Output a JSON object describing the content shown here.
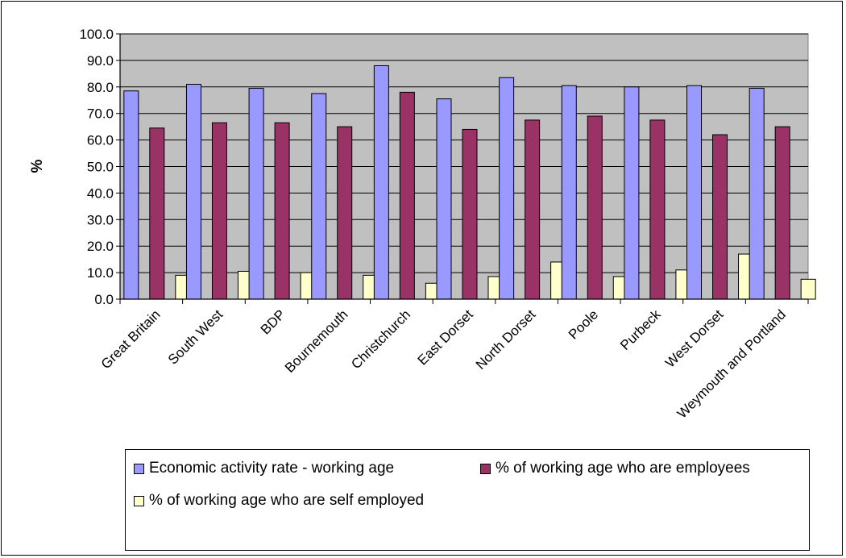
{
  "chart_data": {
    "type": "bar",
    "title": "",
    "xlabel": "",
    "ylabel": "%",
    "ylim": [
      0,
      100
    ],
    "yticks": [
      "0.0",
      "10.0",
      "20.0",
      "30.0",
      "40.0",
      "50.0",
      "60.0",
      "70.0",
      "80.0",
      "90.0",
      "100.0"
    ],
    "grid": true,
    "legend_position": "bottom",
    "categories": [
      "Great Britain",
      "South West",
      "BDP",
      "Bournemouth",
      "Christchurch",
      "East Dorset",
      "North Dorset",
      "Poole",
      "Purbeck",
      "West Dorset",
      "Weymouth and Portland"
    ],
    "series": [
      {
        "name": "Economic activity rate - working age",
        "color": "#9999ff",
        "values": [
          78.5,
          81.0,
          79.5,
          77.5,
          88.0,
          75.5,
          83.5,
          80.5,
          80.0,
          80.5,
          79.5
        ]
      },
      {
        "name": "% of working age who are employees",
        "color": "#993366",
        "values": [
          64.5,
          66.5,
          66.5,
          65.0,
          78.0,
          64.0,
          67.5,
          69.0,
          67.5,
          62.0,
          65.0
        ]
      },
      {
        "name": "% of working age who are self employed",
        "color": "#ffffcc",
        "values": [
          9.0,
          10.5,
          10.0,
          9.0,
          6.0,
          8.5,
          14.0,
          8.5,
          11.0,
          17.0,
          7.5
        ]
      }
    ],
    "plot_background": "#c0c0c0"
  }
}
